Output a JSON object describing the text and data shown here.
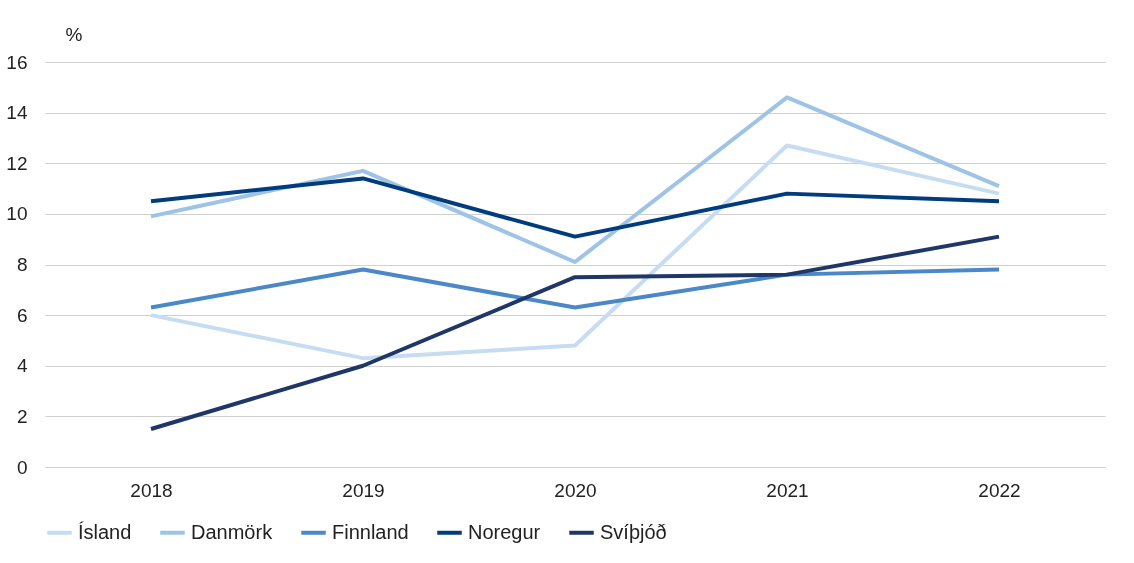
{
  "chart_data": {
    "type": "line",
    "ylabel": "%",
    "categories": [
      "2018",
      "2019",
      "2020",
      "2021",
      "2022"
    ],
    "series": [
      {
        "name": "Ísland",
        "color": "#c6dcf2",
        "values": [
          6.0,
          4.3,
          4.8,
          12.7,
          10.8
        ]
      },
      {
        "name": "Danmörk",
        "color": "#9dc3e6",
        "values": [
          9.9,
          11.7,
          8.1,
          14.6,
          11.1
        ]
      },
      {
        "name": "Finnland",
        "color": "#4a88c7",
        "values": [
          6.3,
          7.8,
          6.3,
          7.6,
          7.8
        ]
      },
      {
        "name": "Noregur",
        "color": "#003c7e",
        "values": [
          10.5,
          11.4,
          9.1,
          10.8,
          10.5
        ]
      },
      {
        "name": "Svíþjóð",
        "color": "#1f3668",
        "values": [
          1.5,
          4.0,
          7.5,
          7.6,
          9.1
        ]
      }
    ],
    "ylim": [
      0,
      16
    ],
    "yticks": [
      0,
      2,
      4,
      6,
      8,
      10,
      12,
      14,
      16
    ],
    "grid": "y",
    "legend": "bottom",
    "marker": "none",
    "line_style": "solid"
  }
}
